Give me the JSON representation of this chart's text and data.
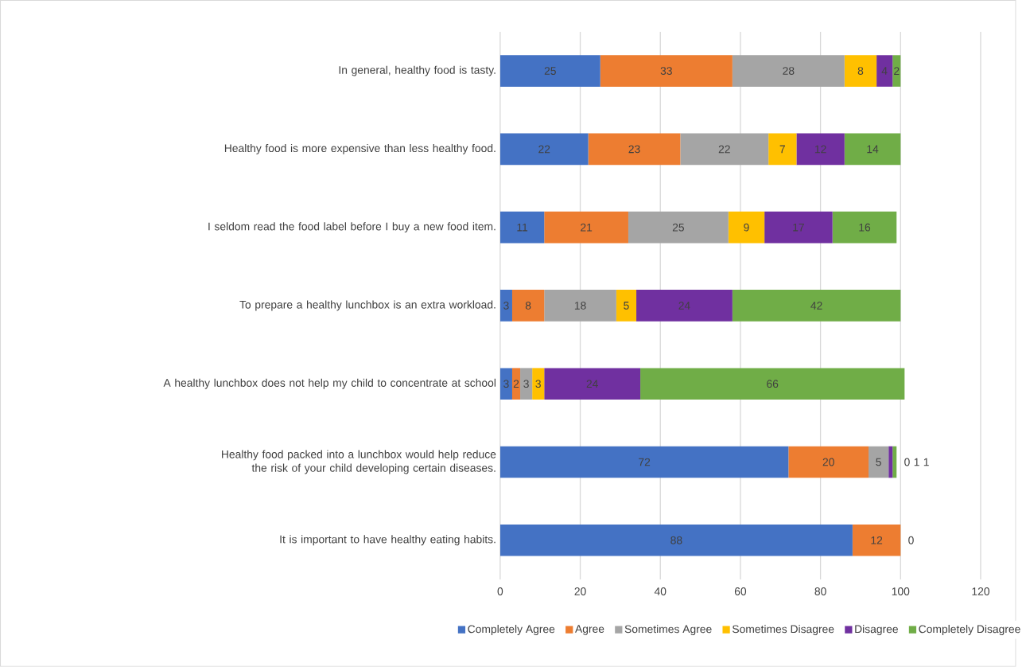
{
  "chart_data": {
    "type": "bar",
    "orientation": "horizontal",
    "stacked": true,
    "grid": "x",
    "legend": "bottom",
    "categories": [
      "In general, healthy food is tasty.",
      "Healthy food is more expensive than less healthy food.",
      "I seldom read the food label before I buy a new food item.",
      "To prepare a healthy lunchbox is an extra workload.",
      "A healthy lunchbox does not help my child to concentrate at school",
      "Healthy food packed into a lunchbox would help reduce the risk of your child developing certain diseases.",
      "It is important to have healthy eating habits."
    ],
    "xlim": [
      0,
      120
    ],
    "xticks": [
      0,
      20,
      40,
      60,
      80,
      100,
      120
    ],
    "series": [
      {
        "name": "Completely Agree",
        "color": "#4472c4",
        "values": [
          25,
          22,
          11,
          3,
          3,
          72,
          88
        ],
        "value_labels": [
          "25",
          "22",
          "11",
          "3",
          "3",
          "72",
          "88"
        ]
      },
      {
        "name": "Agree",
        "color": "#ed7d31",
        "values": [
          33,
          23,
          21,
          8,
          2,
          20,
          12
        ],
        "value_labels": [
          "33",
          "23",
          "21",
          "8",
          "2",
          "20",
          "12"
        ]
      },
      {
        "name": "Sometimes Agree",
        "color": "#a5a5a5",
        "values": [
          28,
          22,
          25,
          18,
          3,
          5,
          0
        ],
        "value_labels": [
          "28",
          "22",
          "25",
          "18",
          "3",
          "5",
          "0"
        ]
      },
      {
        "name": "Sometimes Disagree",
        "color": "#ffc000",
        "values": [
          8,
          7,
          9,
          5,
          3,
          0,
          0
        ],
        "value_labels": [
          "8",
          "7",
          "9",
          "5",
          "3",
          "0",
          null
        ]
      },
      {
        "name": "Disagree",
        "color": "#7030a0",
        "values": [
          4,
          12,
          17,
          24,
          24,
          1,
          0
        ],
        "value_labels": [
          "4",
          "12",
          "17",
          "24",
          "24",
          "1",
          null
        ]
      },
      {
        "name": "Completely Disagree",
        "color": "#70ad47",
        "values": [
          2,
          14,
          16,
          42,
          66,
          1,
          0
        ],
        "value_labels": [
          "2",
          "14",
          "16",
          "42",
          "66",
          "1",
          null
        ]
      }
    ]
  }
}
